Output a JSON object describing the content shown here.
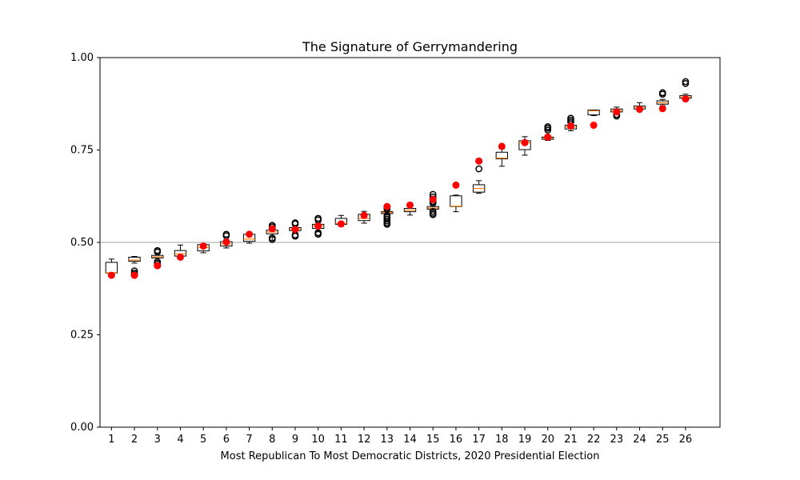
{
  "chart_data": {
    "type": "box",
    "title": "The Signature of Gerrymandering",
    "xlabel": "Most Republican To Most Democratic Districts, 2020 Presidential Election",
    "ylabel": "",
    "ylim": [
      0,
      1
    ],
    "yticks": [
      0.0,
      0.25,
      0.5,
      0.75,
      1.0
    ],
    "ytick_labels": [
      "0.00",
      "0.25",
      "0.50",
      "0.75",
      "1.00"
    ],
    "reference_line": 0.5,
    "categories": [
      "1",
      "2",
      "3",
      "4",
      "5",
      "6",
      "7",
      "8",
      "9",
      "10",
      "11",
      "12",
      "13",
      "14",
      "15",
      "16",
      "17",
      "18",
      "19",
      "20",
      "21",
      "22",
      "23",
      "24",
      "25",
      "26"
    ],
    "boxes": [
      {
        "low": 0.411,
        "q1": 0.417,
        "median": 0.418,
        "q3": 0.446,
        "high": 0.455,
        "outliers": []
      },
      {
        "low": 0.444,
        "q1": 0.449,
        "median": 0.452,
        "q3": 0.46,
        "high": 0.462,
        "outliers": [
          0.411,
          0.413,
          0.417,
          0.423
        ]
      },
      {
        "low": 0.451,
        "q1": 0.458,
        "median": 0.461,
        "q3": 0.465,
        "high": 0.471,
        "outliers": [
          0.437,
          0.442,
          0.448,
          0.474,
          0.478
        ]
      },
      {
        "low": 0.459,
        "q1": 0.463,
        "median": 0.469,
        "q3": 0.478,
        "high": 0.493,
        "outliers": []
      },
      {
        "low": 0.472,
        "q1": 0.477,
        "median": 0.486,
        "q3": 0.494,
        "high": 0.496,
        "outliers": []
      },
      {
        "low": 0.485,
        "q1": 0.49,
        "median": 0.496,
        "q3": 0.502,
        "high": 0.508,
        "outliers": [
          0.518,
          0.522
        ]
      },
      {
        "low": 0.498,
        "q1": 0.503,
        "median": 0.509,
        "q3": 0.522,
        "high": 0.524,
        "outliers": []
      },
      {
        "low": 0.505,
        "q1": 0.523,
        "median": 0.528,
        "q3": 0.533,
        "high": 0.537,
        "outliers": [
          0.508,
          0.512,
          0.542,
          0.546
        ]
      },
      {
        "low": 0.527,
        "q1": 0.532,
        "median": 0.536,
        "q3": 0.54,
        "high": 0.544,
        "outliers": [
          0.517,
          0.52,
          0.55,
          0.553
        ]
      },
      {
        "low": 0.532,
        "q1": 0.538,
        "median": 0.545,
        "q3": 0.549,
        "high": 0.553,
        "outliers": [
          0.522,
          0.526,
          0.561,
          0.565
        ]
      },
      {
        "low": 0.544,
        "q1": 0.549,
        "median": 0.552,
        "q3": 0.565,
        "high": 0.573,
        "outliers": []
      },
      {
        "low": 0.552,
        "q1": 0.559,
        "median": 0.565,
        "q3": 0.576,
        "high": 0.584,
        "outliers": []
      },
      {
        "low": 0.576,
        "q1": 0.578,
        "median": 0.581,
        "q3": 0.583,
        "high": 0.586,
        "outliers": [
          0.549,
          0.553,
          0.558,
          0.563,
          0.568,
          0.573,
          0.59,
          0.595
        ]
      },
      {
        "low": 0.574,
        "q1": 0.583,
        "median": 0.587,
        "q3": 0.592,
        "high": 0.596,
        "outliers": []
      },
      {
        "low": 0.586,
        "q1": 0.59,
        "median": 0.593,
        "q3": 0.597,
        "high": 0.602,
        "outliers": [
          0.575,
          0.579,
          0.584,
          0.606,
          0.611,
          0.617,
          0.623,
          0.63
        ]
      },
      {
        "low": 0.583,
        "q1": 0.597,
        "median": 0.598,
        "q3": 0.626,
        "high": 0.628,
        "outliers": []
      },
      {
        "low": 0.633,
        "q1": 0.636,
        "median": 0.646,
        "q3": 0.656,
        "high": 0.667,
        "outliers": [
          0.699,
          0.72
        ]
      },
      {
        "low": 0.706,
        "q1": 0.726,
        "median": 0.728,
        "q3": 0.744,
        "high": 0.753,
        "outliers": []
      },
      {
        "low": 0.736,
        "q1": 0.751,
        "median": 0.77,
        "q3": 0.775,
        "high": 0.786,
        "outliers": []
      },
      {
        "low": 0.776,
        "q1": 0.779,
        "median": 0.782,
        "q3": 0.785,
        "high": 0.789,
        "outliers": [
          0.804,
          0.809,
          0.813
        ]
      },
      {
        "low": 0.802,
        "q1": 0.807,
        "median": 0.812,
        "q3": 0.817,
        "high": 0.822,
        "outliers": [
          0.826,
          0.831,
          0.836
        ]
      },
      {
        "low": 0.843,
        "q1": 0.845,
        "median": 0.856,
        "q3": 0.858,
        "high": 0.858,
        "outliers": []
      },
      {
        "low": 0.849,
        "q1": 0.853,
        "median": 0.857,
        "q3": 0.861,
        "high": 0.866,
        "outliers": [
          0.842,
          0.846
        ]
      },
      {
        "low": 0.859,
        "q1": 0.861,
        "median": 0.865,
        "q3": 0.869,
        "high": 0.878,
        "outliers": []
      },
      {
        "low": 0.87,
        "q1": 0.874,
        "median": 0.878,
        "q3": 0.883,
        "high": 0.887,
        "outliers": [
          0.901,
          0.905
        ]
      },
      {
        "low": 0.889,
        "q1": 0.89,
        "median": 0.893,
        "q3": 0.897,
        "high": 0.901,
        "outliers": [
          0.93,
          0.935
        ]
      }
    ],
    "actual": [
      0.411,
      0.411,
      0.437,
      0.46,
      0.49,
      0.501,
      0.522,
      0.537,
      0.535,
      0.544,
      0.55,
      0.573,
      0.597,
      0.601,
      0.616,
      0.655,
      0.72,
      0.76,
      0.77,
      0.785,
      0.815,
      0.817,
      0.853,
      0.86,
      0.862,
      0.888
    ],
    "colors": {
      "box": "#000000",
      "median": "#ff7f0e",
      "actual": "#ff0000",
      "reference_line": "#c0c0c0"
    }
  }
}
